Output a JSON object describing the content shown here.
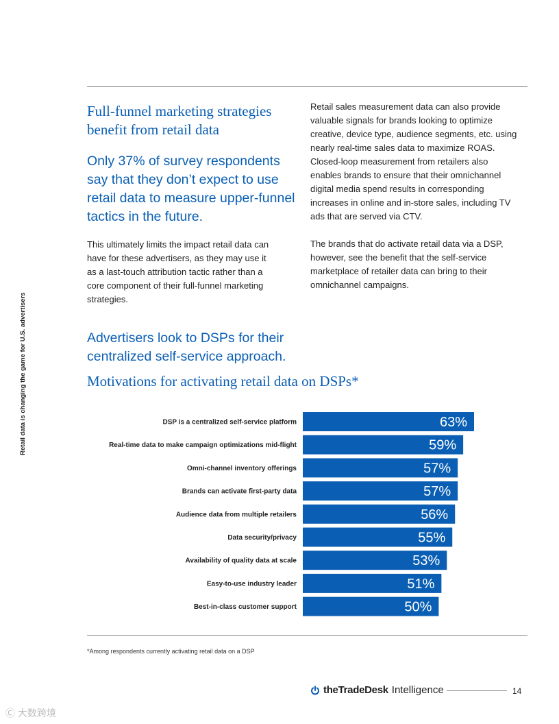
{
  "side_label": "Retail data is changing the game for U.S. advertisers",
  "left": {
    "heading": "Full-funnel marketing strategies benefit from retail data",
    "lead": "Only 37% of survey respondents say that they don’t expect to use retail data to measure upper-funnel tactics in the future.",
    "body": "This ultimately limits the impact retail data can have for these advertisers, as they may use it as a last-touch attribution tactic rather than a core component of their full-funnel marketing strategies."
  },
  "right": {
    "para1": "Retail sales measurement data can also provide valuable signals for brands looking to optimize creative, device type, audience segments, etc. using nearly real-time sales data to maximize ROAS. Closed-loop measurement from retailers also enables brands to ensure that their omnichannel digital media spend results in corresponding increases in online and in-store sales, including TV ads that are served via CTV.",
    "para2": "The brands that do activate retail data via a DSP, however, see the benefit that the self-service marketplace of retailer data can bring to their omnichannel campaigns."
  },
  "section2_lead": "Advertisers look to DSPs for their centralized self-service approach.",
  "chart_data": {
    "type": "bar",
    "orientation": "horizontal",
    "title": "Motivations for activating retail data on DSPs*",
    "categories": [
      "DSP is a centralized self-service platform",
      "Real-time data to make campaign optimizations mid-flight",
      "Omni-channel inventory offerings",
      "Brands can activate first-party data",
      "Audience data from multiple retailers",
      "Data security/privacy",
      "Availability of quality data at scale",
      "Easy-to-use industry leader",
      "Best-in-class customer support"
    ],
    "values": [
      63,
      59,
      57,
      57,
      56,
      55,
      53,
      51,
      50
    ],
    "value_labels": [
      "63%",
      "59%",
      "57%",
      "57%",
      "56%",
      "55%",
      "53%",
      "51%",
      "50%"
    ],
    "bar_color": "#0a5fb4",
    "label_color": "#ffffff"
  },
  "footnote": "*Among respondents currently activating retail data on a DSP",
  "footer": {
    "brand_bold": "theTradeDesk",
    "brand_light": "Intelligence",
    "page_number": "14"
  },
  "watermark": "Ⓒ 大数跨境"
}
